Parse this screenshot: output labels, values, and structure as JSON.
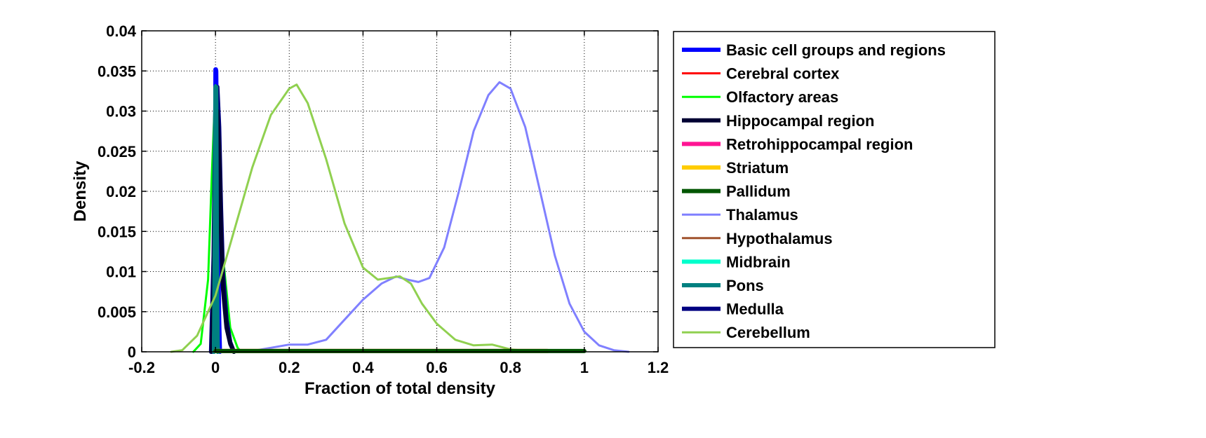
{
  "chart_data": {
    "type": "line",
    "title": "",
    "xlabel": "Fraction of total density",
    "ylabel": "Density",
    "xlim": [
      -0.2,
      1.2
    ],
    "ylim": [
      0,
      0.04
    ],
    "xticks": [
      -0.2,
      0,
      0.2,
      0.4,
      0.6,
      0.8,
      1,
      1.2
    ],
    "xtick_labels": [
      "-0.2",
      "0",
      "0.2",
      "0.4",
      "0.6",
      "0.8",
      "1",
      "1.2"
    ],
    "yticks": [
      0,
      0.005,
      0.01,
      0.015,
      0.02,
      0.025,
      0.03,
      0.035,
      0.04
    ],
    "ytick_labels": [
      "0",
      "0.005",
      "0.01",
      "0.015",
      "0.02",
      "0.025",
      "0.03",
      "0.035",
      "0.04"
    ],
    "grid": true,
    "legend_position": "outside-right",
    "series": [
      {
        "name": "Basic cell groups and regions",
        "color": "#0000ff",
        "width": 6,
        "x": [
          -0.005,
          -0.002,
          -0.001,
          0,
          0.001,
          0.002,
          0.005,
          0.01,
          0.012
        ],
        "y": [
          0,
          0.006,
          0.02,
          0.0352,
          0.0352,
          0.035,
          0.02,
          0.004,
          0
        ]
      },
      {
        "name": "Cerebral cortex",
        "color": "#ff0000",
        "width": 3,
        "x": [
          0.0,
          1.0
        ],
        "y": [
          0.0002,
          0.0002
        ]
      },
      {
        "name": "Olfactory areas",
        "color": "#00ff00",
        "width": 3,
        "x": [
          -0.06,
          -0.04,
          -0.02,
          -0.01,
          0.0,
          0.01,
          0.02,
          0.04,
          0.06,
          0.07
        ],
        "y": [
          0,
          0.001,
          0.009,
          0.022,
          0.0332,
          0.025,
          0.012,
          0.003,
          0.0005,
          0
        ]
      },
      {
        "name": "Hippocampal region",
        "color": "#000033",
        "width": 6,
        "x": [
          -0.01,
          -0.005,
          0.0,
          0.005,
          0.01,
          0.015,
          0.02,
          0.03,
          0.04,
          0.05
        ],
        "y": [
          0,
          0.008,
          0.025,
          0.03,
          0.025,
          0.015,
          0.008,
          0.003,
          0.001,
          0
        ]
      },
      {
        "name": "Retrohippocampal region",
        "color": "#ff1493",
        "width": 6,
        "x": [
          0.0,
          0.9
        ],
        "y": [
          0.0001,
          0.0001
        ]
      },
      {
        "name": "Striatum",
        "color": "#ffcc00",
        "width": 6,
        "x": [
          0.0,
          0.9
        ],
        "y": [
          0.0001,
          0.0001
        ]
      },
      {
        "name": "Pallidum",
        "color": "#005500",
        "width": 6,
        "x": [
          0.0,
          1.0
        ],
        "y": [
          0.0001,
          0.0001
        ]
      },
      {
        "name": "Thalamus",
        "color": "#8080ff",
        "width": 3,
        "x": [
          0.0,
          0.1,
          0.15,
          0.2,
          0.25,
          0.3,
          0.35,
          0.4,
          0.45,
          0.49,
          0.52,
          0.55,
          0.58,
          0.62,
          0.66,
          0.7,
          0.74,
          0.77,
          0.8,
          0.84,
          0.88,
          0.92,
          0.96,
          1.0,
          1.04,
          1.08,
          1.12
        ],
        "y": [
          0,
          0.0001,
          0.0005,
          0.0009,
          0.0009,
          0.0015,
          0.004,
          0.0065,
          0.0085,
          0.0094,
          0.009,
          0.0087,
          0.0092,
          0.013,
          0.02,
          0.0275,
          0.032,
          0.0336,
          0.0328,
          0.028,
          0.02,
          0.012,
          0.006,
          0.0025,
          0.0008,
          0.0002,
          0
        ]
      },
      {
        "name": "Hypothalamus",
        "color": "#a0522d",
        "width": 3,
        "x": [
          0.0,
          0.8
        ],
        "y": [
          0.0001,
          0.0001
        ]
      },
      {
        "name": "Midbrain",
        "color": "#00ffcc",
        "width": 6,
        "x": [
          -0.004,
          0.0,
          0.004,
          0.006
        ],
        "y": [
          0,
          0.012,
          0.006,
          0
        ]
      },
      {
        "name": "Pons",
        "color": "#008080",
        "width": 6,
        "x": [
          -0.004,
          -0.002,
          0.0,
          0.002,
          0.004,
          0.006
        ],
        "y": [
          0,
          0.015,
          0.033,
          0.033,
          0.012,
          0
        ]
      },
      {
        "name": "Medulla",
        "color": "#000080",
        "width": 6,
        "x": [
          -0.012,
          -0.005,
          0.0,
          0.005,
          0.01,
          0.015,
          0.02,
          0.03,
          0.04,
          0.05
        ],
        "y": [
          0,
          0.012,
          0.031,
          0.033,
          0.028,
          0.018,
          0.01,
          0.004,
          0.0012,
          0
        ]
      },
      {
        "name": "Cerebellum",
        "color": "#90d050",
        "width": 3,
        "x": [
          -0.12,
          -0.09,
          -0.05,
          0.0,
          0.05,
          0.1,
          0.15,
          0.2,
          0.22,
          0.25,
          0.3,
          0.35,
          0.4,
          0.44,
          0.47,
          0.5,
          0.53,
          0.56,
          0.6,
          0.65,
          0.7,
          0.75,
          0.8,
          0.85,
          0.9
        ],
        "y": [
          0,
          0.0002,
          0.002,
          0.007,
          0.015,
          0.023,
          0.0295,
          0.0328,
          0.0333,
          0.031,
          0.024,
          0.016,
          0.0105,
          0.009,
          0.0092,
          0.0094,
          0.0085,
          0.006,
          0.0035,
          0.0015,
          0.0008,
          0.0009,
          0.0003,
          0.0001,
          0
        ]
      }
    ]
  }
}
